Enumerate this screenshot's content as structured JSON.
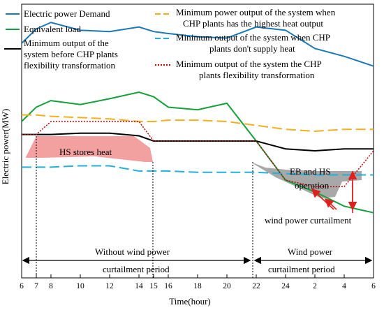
{
  "chart_data": {
    "type": "line",
    "title": "",
    "xlabel": "Time(hour)",
    "ylabel": "Electric power(MW)",
    "x_ticks": [
      "6",
      "7",
      "8",
      "10",
      "12",
      "14",
      "15",
      "16",
      "18",
      "20",
      "22",
      "24",
      "2",
      "4",
      "6"
    ],
    "x": [
      6,
      7,
      8,
      10,
      12,
      14,
      15,
      16,
      18,
      20,
      22,
      24,
      26,
      28,
      30
    ],
    "series": [
      {
        "name": "Electric power Demand",
        "color": "#1a78b4",
        "style": "solid",
        "values": [
          360,
          382,
          392,
          380,
          378,
          385,
          378,
          375,
          370,
          368,
          385,
          380,
          352,
          340,
          325
        ]
      },
      {
        "name": "Equivalent load",
        "color": "#14a03c",
        "style": "solid",
        "values": [
          240,
          262,
          272,
          266,
          275,
          285,
          278,
          262,
          258,
          268,
          210,
          150,
          132,
          110,
          100
        ]
      },
      {
        "name": "Minimum power output of the system when CHP plants has the highest heat output",
        "color": "#f0b020",
        "style": "dashed",
        "values": [
          250,
          250,
          248,
          246,
          244,
          240,
          240,
          242,
          242,
          240,
          234,
          228,
          225,
          228,
          228
        ]
      },
      {
        "name": "Minimum output of the system when CHP plants don't supply heat",
        "color": "#20b0d8",
        "style": "dashed",
        "values": [
          170,
          170,
          170,
          172,
          172,
          164,
          164,
          164,
          162,
          162,
          162,
          160,
          158,
          158,
          158
        ]
      },
      {
        "name": "Minimum output of the system before CHP plants flexibility transformation",
        "color": "#000000",
        "style": "solid",
        "values": [
          220,
          220,
          220,
          222,
          222,
          218,
          210,
          210,
          210,
          210,
          210,
          198,
          195,
          198,
          198
        ]
      },
      {
        "name": "Minimum output of the system the CHP plants flexibility transformation",
        "color": "#c00000",
        "style": "dotted",
        "values": [
          220,
          220,
          240,
          240,
          240,
          240,
          210,
          210,
          210,
          210,
          210,
          150,
          140,
          140,
          195
        ]
      }
    ],
    "annotations": {
      "hs_stores_heat": "HS stores heat",
      "eb_hs_line1": "EB and HS",
      "eb_hs_line2": "operation",
      "curtailment": "wind power curtailment",
      "period_left_line1": "Without wind power",
      "period_left_line2": "curtailment period",
      "period_right_line1": "Wind power",
      "period_right_line2": "curtailment period"
    },
    "legend_placement": "top",
    "colors": {
      "hs_fill": "#f2a0a0",
      "eb_fill": "#a8a8a8",
      "arrow": "#e0201c"
    }
  }
}
